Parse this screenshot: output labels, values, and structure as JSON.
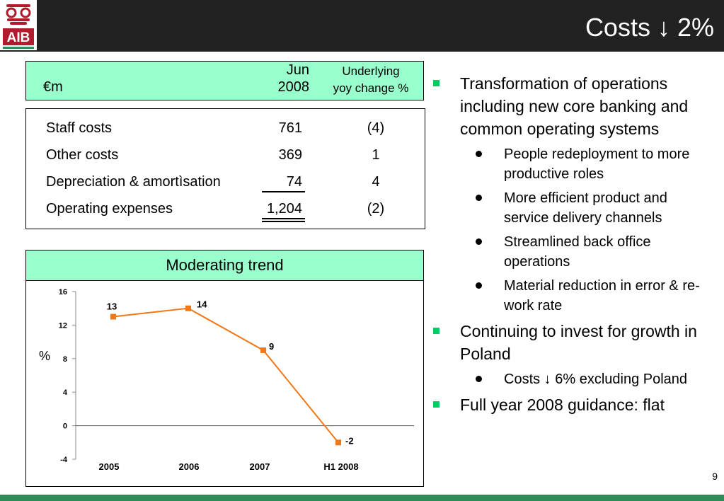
{
  "header": {
    "title": "Costs ↓ 2%",
    "logo_text": "AIB"
  },
  "colors": {
    "header_bg": "#222222",
    "panel_green": "#99ffcc",
    "bullet_green": "#00cc66",
    "footer_green": "#2e8b57",
    "line_orange": "#f07818"
  },
  "table": {
    "unit_label": "€m",
    "col1_line1": "Jun",
    "col1_line2": "2008",
    "col2_line1": "Underlying",
    "col2_line2": "yoy  change %",
    "rows": [
      {
        "label": "Staff costs",
        "value": "761",
        "change": "(4)"
      },
      {
        "label": "Other costs",
        "value": "369",
        "change": "1"
      },
      {
        "label": "Depreciation & amortìsation",
        "value": "74",
        "change": "4"
      },
      {
        "label": "Operating expenses",
        "value": "1,204",
        "change": "(2)"
      }
    ]
  },
  "chart_data": {
    "type": "line",
    "title": "Moderating trend",
    "ylabel": "%",
    "categories": [
      "2005",
      "2006",
      "2007",
      "H1 2008"
    ],
    "values": [
      13,
      14,
      9,
      -2
    ],
    "data_labels": [
      "13",
      "14",
      "9",
      "-2"
    ],
    "ylim": [
      -4,
      16
    ],
    "yticks": [
      "16",
      "12",
      "8",
      "4",
      "0",
      "-4"
    ],
    "grid": false
  },
  "bullets": [
    {
      "text": "Transformation of operations including new core banking and common operating systems",
      "sub": [
        "People redeployment to more productive roles",
        "More efficient product and service delivery channels",
        "Streamlined back office operations",
        "Material reduction in error & re-work rate"
      ]
    },
    {
      "text": "Continuing to invest for growth in Poland",
      "sub": [
        "Costs ↓ 6% excluding Poland"
      ]
    },
    {
      "text": "Full year 2008 guidance: flat",
      "sub": []
    }
  ],
  "page_number": "9"
}
